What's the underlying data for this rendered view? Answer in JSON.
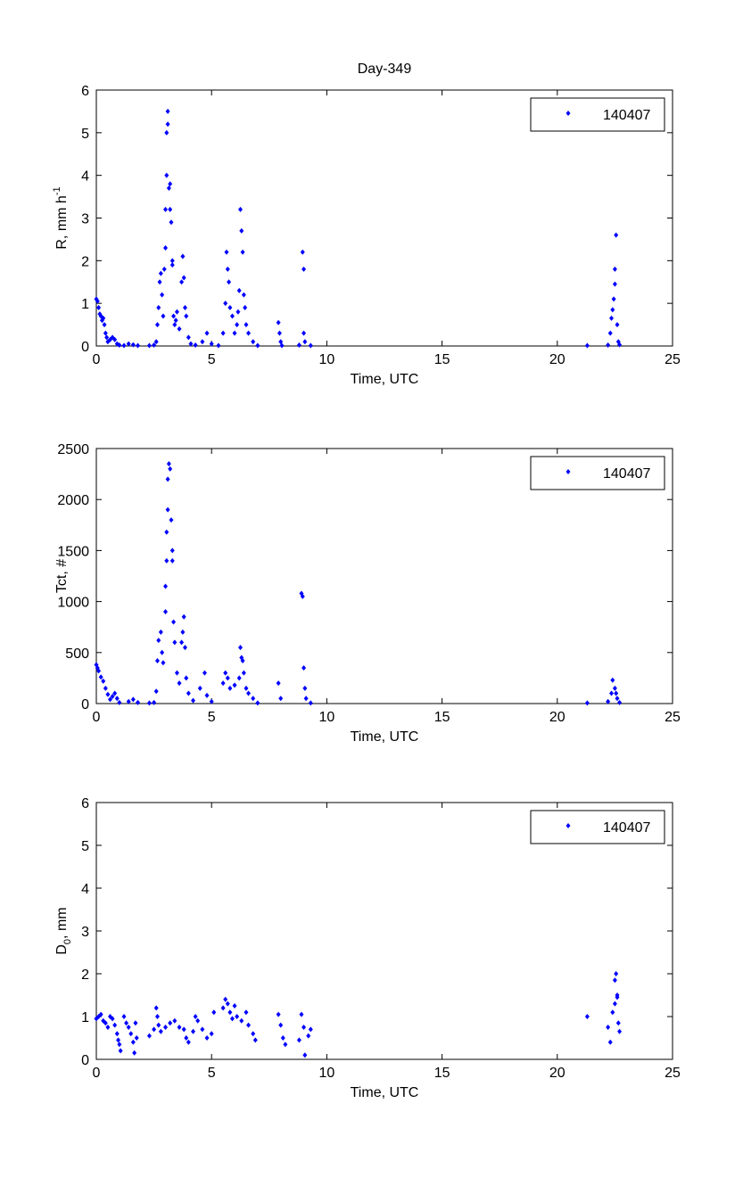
{
  "figure_title": "Day-349",
  "colors": {
    "marker": "#0000ff",
    "axis": "#000000"
  },
  "chart_data": [
    {
      "type": "scatter",
      "title": "Day-349",
      "xlabel": "Time, UTC",
      "ylabel": {
        "text": "R, mm h",
        "sup": "-1",
        "sub": "",
        "suffix": ""
      },
      "xlim": [
        0,
        25
      ],
      "ylim": [
        0,
        6
      ],
      "xticks": [
        0,
        5,
        10,
        15,
        20,
        25
      ],
      "yticks": [
        0,
        1,
        2,
        3,
        4,
        5,
        6
      ],
      "legend": {
        "entries": [
          "140407"
        ],
        "placement": "top-right"
      },
      "grid": false,
      "series": [
        {
          "name": "140407",
          "marker": "diamond",
          "points": [
            [
              0,
              1.1
            ],
            [
              0.05,
              1.05
            ],
            [
              0.1,
              0.9
            ],
            [
              0.15,
              0.75
            ],
            [
              0.2,
              0.7
            ],
            [
              0.25,
              0.6
            ],
            [
              0.3,
              0.65
            ],
            [
              0.35,
              0.5
            ],
            [
              0.4,
              0.3
            ],
            [
              0.45,
              0.2
            ],
            [
              0.5,
              0.1
            ],
            [
              0.6,
              0.15
            ],
            [
              0.7,
              0.2
            ],
            [
              0.8,
              0.15
            ],
            [
              0.9,
              0.05
            ],
            [
              1.0,
              0.02
            ],
            [
              1.2,
              0.01
            ],
            [
              1.4,
              0.05
            ],
            [
              1.6,
              0.03
            ],
            [
              1.8,
              0.01
            ],
            [
              2.3,
              0.01
            ],
            [
              2.5,
              0.02
            ],
            [
              2.6,
              0.1
            ],
            [
              2.65,
              0.5
            ],
            [
              2.7,
              0.9
            ],
            [
              2.75,
              1.5
            ],
            [
              2.8,
              1.7
            ],
            [
              2.85,
              1.2
            ],
            [
              2.9,
              0.7
            ],
            [
              2.95,
              1.8
            ],
            [
              3.0,
              2.3
            ],
            [
              3.0,
              3.2
            ],
            [
              3.05,
              4.0
            ],
            [
              3.05,
              5.0
            ],
            [
              3.1,
              5.2
            ],
            [
              3.1,
              5.5
            ],
            [
              3.15,
              3.7
            ],
            [
              3.2,
              3.2
            ],
            [
              3.2,
              3.8
            ],
            [
              3.25,
              2.9
            ],
            [
              3.3,
              1.9
            ],
            [
              3.3,
              2.0
            ],
            [
              3.35,
              0.7
            ],
            [
              3.4,
              0.5
            ],
            [
              3.45,
              0.6
            ],
            [
              3.5,
              0.8
            ],
            [
              3.6,
              0.4
            ],
            [
              3.7,
              1.5
            ],
            [
              3.75,
              2.1
            ],
            [
              3.8,
              1.6
            ],
            [
              3.85,
              0.9
            ],
            [
              3.9,
              0.7
            ],
            [
              4.0,
              0.2
            ],
            [
              4.1,
              0.05
            ],
            [
              4.3,
              0.02
            ],
            [
              4.6,
              0.1
            ],
            [
              4.8,
              0.3
            ],
            [
              5.0,
              0.05
            ],
            [
              5.3,
              0.01
            ],
            [
              5.5,
              0.3
            ],
            [
              5.6,
              1.0
            ],
            [
              5.65,
              2.2
            ],
            [
              5.7,
              1.8
            ],
            [
              5.75,
              1.5
            ],
            [
              5.8,
              0.9
            ],
            [
              5.9,
              0.7
            ],
            [
              6.0,
              0.3
            ],
            [
              6.1,
              0.5
            ],
            [
              6.15,
              0.8
            ],
            [
              6.2,
              1.3
            ],
            [
              6.25,
              3.2
            ],
            [
              6.3,
              2.7
            ],
            [
              6.35,
              2.2
            ],
            [
              6.4,
              1.2
            ],
            [
              6.45,
              0.9
            ],
            [
              6.5,
              0.5
            ],
            [
              6.6,
              0.3
            ],
            [
              6.8,
              0.1
            ],
            [
              7.0,
              0.01
            ],
            [
              7.9,
              0.55
            ],
            [
              7.95,
              0.3
            ],
            [
              8.0,
              0.1
            ],
            [
              8.05,
              0.01
            ],
            [
              8.8,
              0.02
            ],
            [
              8.95,
              2.2
            ],
            [
              9.0,
              1.8
            ],
            [
              9.0,
              0.3
            ],
            [
              9.05,
              0.1
            ],
            [
              9.3,
              0.01
            ],
            [
              21.3,
              0.01
            ],
            [
              22.2,
              0.02
            ],
            [
              22.3,
              0.3
            ],
            [
              22.35,
              0.65
            ],
            [
              22.4,
              0.85
            ],
            [
              22.45,
              1.1
            ],
            [
              22.5,
              1.45
            ],
            [
              22.55,
              2.6
            ],
            [
              22.5,
              1.8
            ],
            [
              22.6,
              0.5
            ],
            [
              22.65,
              0.1
            ],
            [
              22.7,
              0.03
            ]
          ]
        }
      ]
    },
    {
      "type": "scatter",
      "xlabel": "Time, UTC",
      "ylabel": {
        "text": "Tct, #",
        "sup": "",
        "sub": "",
        "suffix": ""
      },
      "xlim": [
        0,
        25
      ],
      "ylim": [
        0,
        2500
      ],
      "xticks": [
        0,
        5,
        10,
        15,
        20,
        25
      ],
      "yticks": [
        0,
        500,
        1000,
        1500,
        2000,
        2500
      ],
      "legend": {
        "entries": [
          "140407"
        ],
        "placement": "top-right"
      },
      "grid": false,
      "series": [
        {
          "name": "140407",
          "marker": "diamond",
          "points": [
            [
              0,
              380
            ],
            [
              0.05,
              350
            ],
            [
              0.1,
              320
            ],
            [
              0.2,
              260
            ],
            [
              0.3,
              220
            ],
            [
              0.4,
              150
            ],
            [
              0.5,
              90
            ],
            [
              0.6,
              40
            ],
            [
              0.7,
              70
            ],
            [
              0.8,
              100
            ],
            [
              0.9,
              50
            ],
            [
              1.0,
              10
            ],
            [
              1.4,
              20
            ],
            [
              1.6,
              40
            ],
            [
              1.8,
              10
            ],
            [
              2.3,
              5
            ],
            [
              2.5,
              10
            ],
            [
              2.6,
              120
            ],
            [
              2.65,
              420
            ],
            [
              2.7,
              620
            ],
            [
              2.8,
              700
            ],
            [
              2.85,
              500
            ],
            [
              2.9,
              400
            ],
            [
              3.0,
              900
            ],
            [
              3.0,
              1150
            ],
            [
              3.05,
              1400
            ],
            [
              3.05,
              1680
            ],
            [
              3.1,
              1900
            ],
            [
              3.1,
              2200
            ],
            [
              3.15,
              2350
            ],
            [
              3.2,
              2300
            ],
            [
              3.25,
              1800
            ],
            [
              3.3,
              1500
            ],
            [
              3.3,
              1400
            ],
            [
              3.35,
              800
            ],
            [
              3.4,
              600
            ],
            [
              3.5,
              300
            ],
            [
              3.6,
              200
            ],
            [
              3.7,
              600
            ],
            [
              3.75,
              700
            ],
            [
              3.8,
              850
            ],
            [
              3.85,
              550
            ],
            [
              3.9,
              250
            ],
            [
              4.0,
              100
            ],
            [
              4.2,
              30
            ],
            [
              4.5,
              150
            ],
            [
              4.7,
              300
            ],
            [
              4.8,
              80
            ],
            [
              5.0,
              20
            ],
            [
              5.5,
              200
            ],
            [
              5.6,
              300
            ],
            [
              5.7,
              250
            ],
            [
              5.8,
              150
            ],
            [
              6.0,
              180
            ],
            [
              6.2,
              250
            ],
            [
              6.25,
              550
            ],
            [
              6.3,
              450
            ],
            [
              6.35,
              420
            ],
            [
              6.4,
              300
            ],
            [
              6.5,
              150
            ],
            [
              6.6,
              100
            ],
            [
              6.8,
              50
            ],
            [
              7.0,
              5
            ],
            [
              7.9,
              200
            ],
            [
              8.0,
              50
            ],
            [
              8.9,
              1080
            ],
            [
              8.95,
              1050
            ],
            [
              9.0,
              350
            ],
            [
              9.05,
              150
            ],
            [
              9.1,
              50
            ],
            [
              9.3,
              5
            ],
            [
              21.3,
              5
            ],
            [
              22.2,
              20
            ],
            [
              22.35,
              100
            ],
            [
              22.4,
              230
            ],
            [
              22.5,
              150
            ],
            [
              22.55,
              100
            ],
            [
              22.6,
              50
            ],
            [
              22.7,
              10
            ]
          ]
        }
      ]
    },
    {
      "type": "scatter",
      "xlabel": "Time, UTC",
      "ylabel": {
        "text": "D",
        "sup": "",
        "sub": "0",
        "suffix": ", mm"
      },
      "xlim": [
        0,
        25
      ],
      "ylim": [
        0,
        6
      ],
      "xticks": [
        0,
        5,
        10,
        15,
        20,
        25
      ],
      "yticks": [
        0,
        1,
        2,
        3,
        4,
        5,
        6
      ],
      "legend": {
        "entries": [
          "140407"
        ],
        "placement": "top-right"
      },
      "grid": false,
      "series": [
        {
          "name": "140407",
          "marker": "diamond",
          "points": [
            [
              0,
              0.95
            ],
            [
              0.1,
              1.0
            ],
            [
              0.2,
              1.05
            ],
            [
              0.3,
              0.9
            ],
            [
              0.4,
              0.85
            ],
            [
              0.5,
              0.75
            ],
            [
              0.6,
              1.0
            ],
            [
              0.7,
              0.95
            ],
            [
              0.8,
              0.8
            ],
            [
              0.9,
              0.6
            ],
            [
              0.95,
              0.45
            ],
            [
              1.0,
              0.35
            ],
            [
              1.05,
              0.2
            ],
            [
              1.2,
              1.0
            ],
            [
              1.3,
              0.85
            ],
            [
              1.4,
              0.75
            ],
            [
              1.5,
              0.6
            ],
            [
              1.6,
              0.4
            ],
            [
              1.65,
              0.15
            ],
            [
              1.7,
              0.85
            ],
            [
              1.75,
              0.5
            ],
            [
              2.3,
              0.55
            ],
            [
              2.5,
              0.7
            ],
            [
              2.6,
              1.2
            ],
            [
              2.65,
              1.0
            ],
            [
              2.7,
              0.8
            ],
            [
              2.8,
              0.65
            ],
            [
              3.0,
              0.75
            ],
            [
              3.2,
              0.85
            ],
            [
              3.4,
              0.9
            ],
            [
              3.6,
              0.75
            ],
            [
              3.8,
              0.7
            ],
            [
              3.9,
              0.5
            ],
            [
              4.0,
              0.4
            ],
            [
              4.2,
              0.65
            ],
            [
              4.3,
              1.0
            ],
            [
              4.4,
              0.9
            ],
            [
              4.6,
              0.7
            ],
            [
              4.8,
              0.5
            ],
            [
              5.0,
              0.6
            ],
            [
              5.1,
              1.1
            ],
            [
              5.5,
              1.2
            ],
            [
              5.6,
              1.4
            ],
            [
              5.7,
              1.3
            ],
            [
              5.8,
              1.1
            ],
            [
              5.9,
              0.95
            ],
            [
              6.0,
              1.25
            ],
            [
              6.1,
              1.0
            ],
            [
              6.3,
              0.9
            ],
            [
              6.5,
              1.1
            ],
            [
              6.6,
              0.8
            ],
            [
              6.8,
              0.6
            ],
            [
              6.9,
              0.45
            ],
            [
              7.9,
              1.05
            ],
            [
              8.0,
              0.8
            ],
            [
              8.1,
              0.5
            ],
            [
              8.2,
              0.35
            ],
            [
              8.8,
              0.45
            ],
            [
              8.9,
              1.05
            ],
            [
              9.0,
              0.75
            ],
            [
              9.05,
              0.1
            ],
            [
              9.2,
              0.55
            ],
            [
              9.3,
              0.7
            ],
            [
              21.3,
              1.0
            ],
            [
              22.2,
              0.75
            ],
            [
              22.3,
              0.4
            ],
            [
              22.4,
              1.1
            ],
            [
              22.5,
              1.3
            ],
            [
              22.55,
              2.0
            ],
            [
              22.5,
              1.85
            ],
            [
              22.6,
              1.45
            ],
            [
              22.65,
              0.85
            ],
            [
              22.7,
              0.65
            ],
            [
              22.6,
              1.5
            ]
          ]
        }
      ]
    }
  ]
}
